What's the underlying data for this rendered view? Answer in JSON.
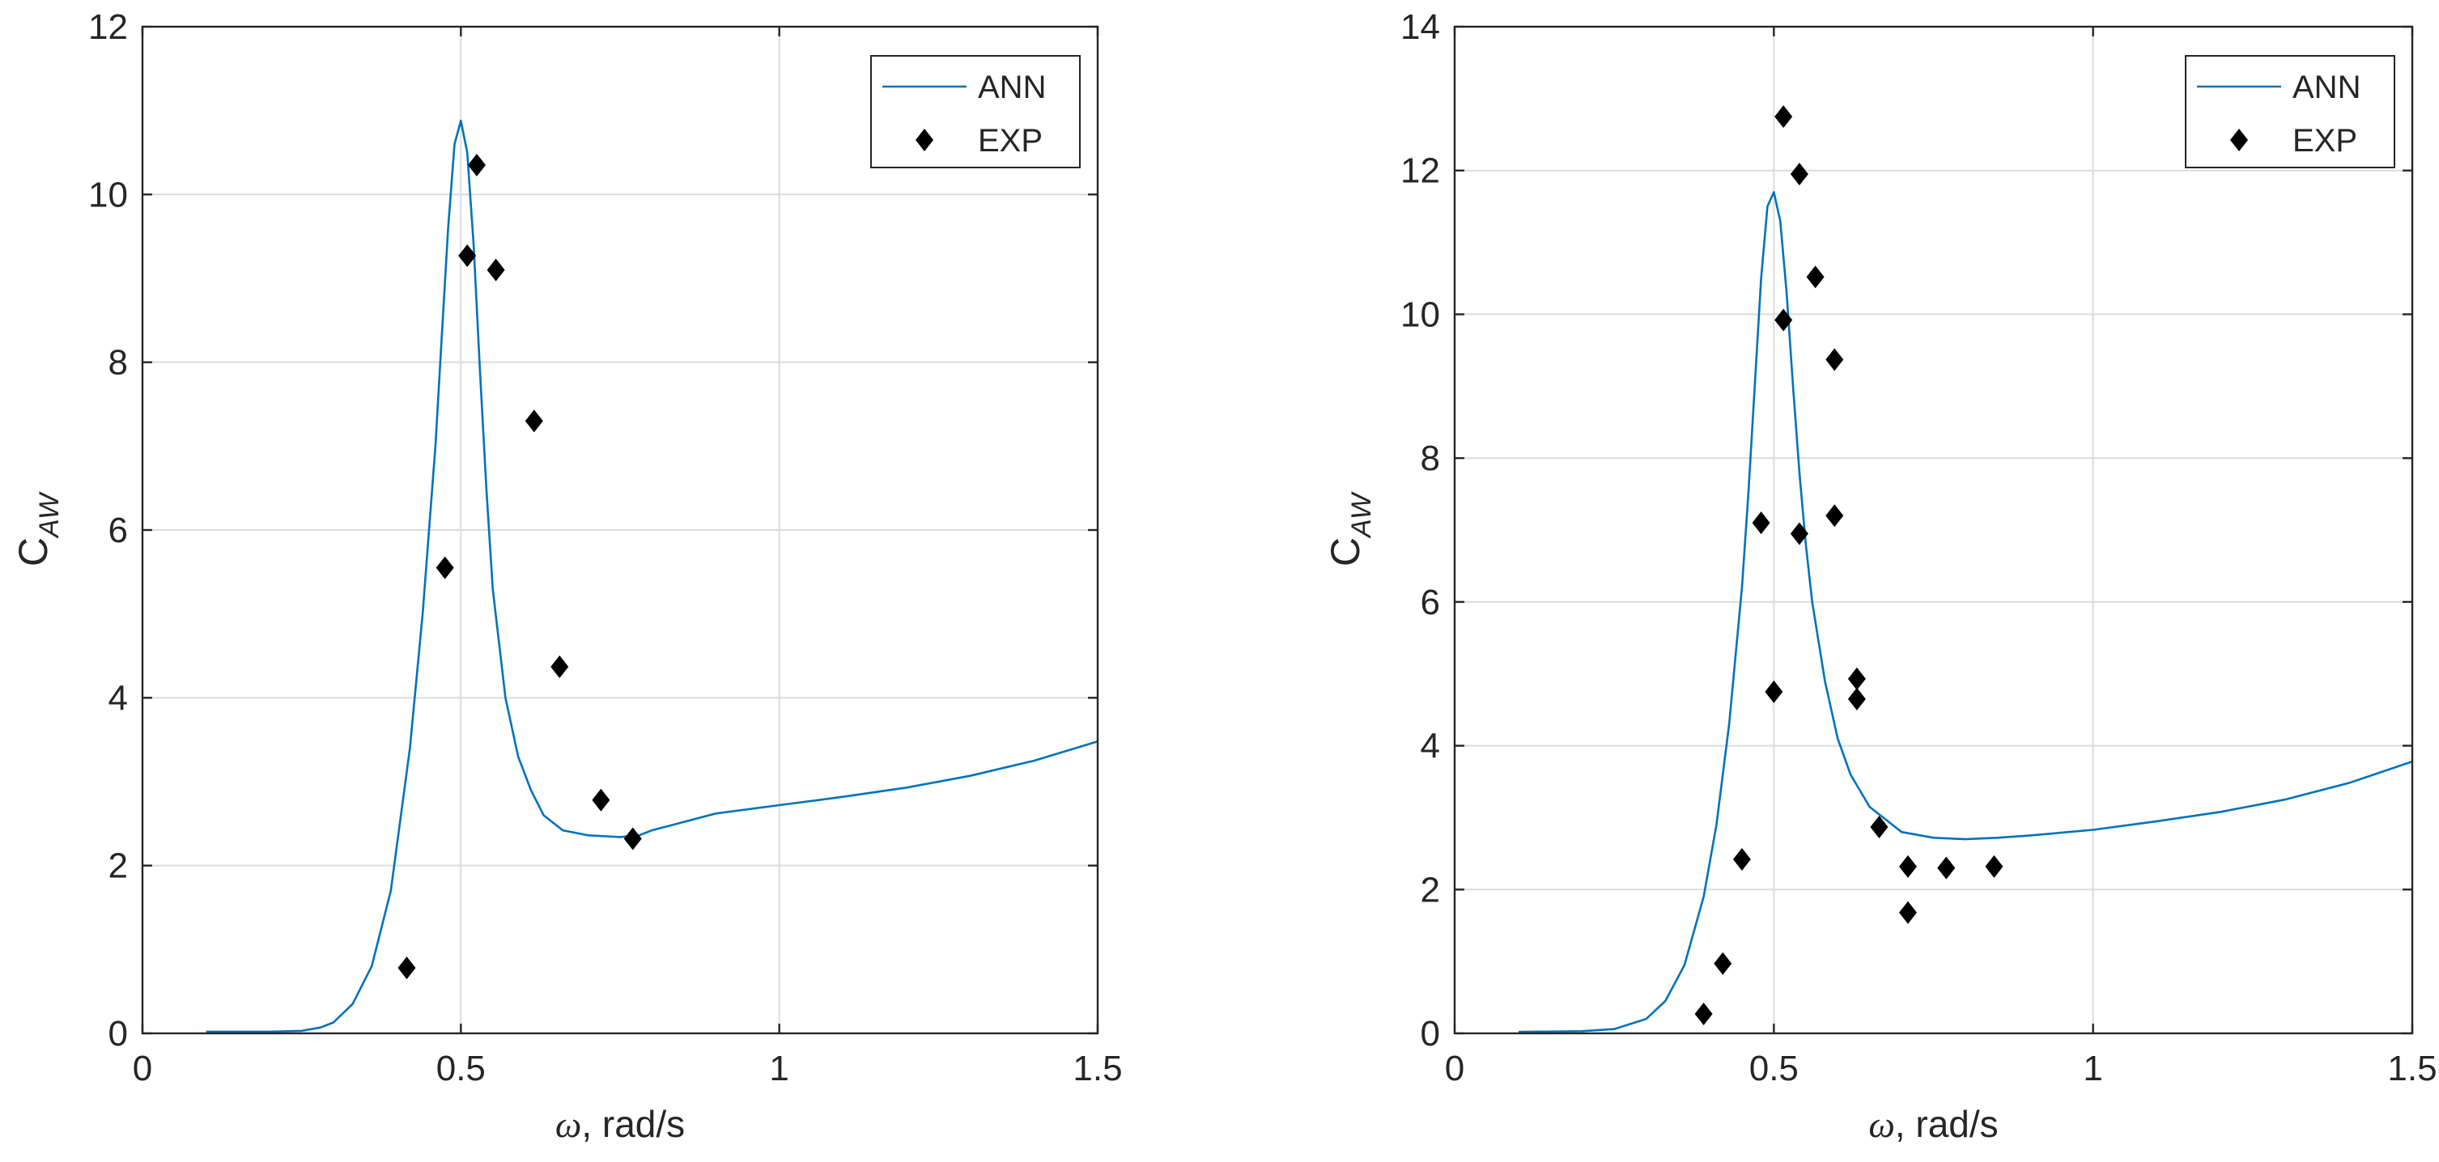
{
  "chart_data": [
    {
      "type": "line",
      "xlabel_symbol": "ω",
      "xlabel_rest": ", rad/s",
      "ylabel_main": "C",
      "ylabel_sub": "AW",
      "xlim": [
        0,
        1.5
      ],
      "ylim": [
        0,
        12
      ],
      "xticks": [
        0,
        0.5,
        1,
        1.5
      ],
      "xtick_labels": [
        "0",
        "0.5",
        "1",
        "1.5"
      ],
      "yticks": [
        0,
        2,
        4,
        6,
        8,
        10,
        12
      ],
      "ytick_labels": [
        "0",
        "2",
        "4",
        "6",
        "8",
        "10",
        "12"
      ],
      "grid": true,
      "legend_position": "top-right",
      "series": [
        {
          "name": "ANN",
          "kind": "line",
          "color": "#0072BD",
          "x": [
            0.1,
            0.2,
            0.25,
            0.28,
            0.3,
            0.33,
            0.36,
            0.39,
            0.42,
            0.44,
            0.46,
            0.47,
            0.48,
            0.49,
            0.5,
            0.51,
            0.52,
            0.53,
            0.54,
            0.55,
            0.57,
            0.59,
            0.61,
            0.63,
            0.66,
            0.7,
            0.75,
            0.78,
            0.8,
            0.85,
            0.9,
            1.0,
            1.1,
            1.2,
            1.3,
            1.4,
            1.5
          ],
          "y": [
            0.02,
            0.02,
            0.03,
            0.07,
            0.13,
            0.35,
            0.8,
            1.7,
            3.4,
            5.0,
            7.0,
            8.3,
            9.6,
            10.6,
            10.88,
            10.5,
            9.4,
            7.9,
            6.5,
            5.3,
            4.0,
            3.3,
            2.9,
            2.6,
            2.42,
            2.36,
            2.34,
            2.36,
            2.42,
            2.52,
            2.62,
            2.72,
            2.82,
            2.93,
            3.07,
            3.25,
            3.48
          ]
        },
        {
          "name": "EXP",
          "kind": "scatter",
          "marker": "diamond",
          "color": "#000000",
          "x": [
            0.415,
            0.475,
            0.51,
            0.525,
            0.555,
            0.615,
            0.655,
            0.72,
            0.77
          ],
          "y": [
            0.78,
            5.55,
            9.27,
            10.35,
            9.1,
            7.3,
            4.37,
            2.78,
            2.32
          ]
        }
      ]
    },
    {
      "type": "line",
      "xlabel_symbol": "ω",
      "xlabel_rest": ", rad/s",
      "ylabel_main": "C",
      "ylabel_sub": "AW",
      "xlim": [
        0,
        1.5
      ],
      "ylim": [
        0,
        14
      ],
      "xticks": [
        0,
        0.5,
        1,
        1.5
      ],
      "xtick_labels": [
        "0",
        "0.5",
        "1",
        "1.5"
      ],
      "yticks": [
        0,
        2,
        4,
        6,
        8,
        10,
        12,
        14
      ],
      "ytick_labels": [
        "0",
        "2",
        "4",
        "6",
        "8",
        "10",
        "12",
        "14"
      ],
      "grid": true,
      "legend_position": "top-right",
      "series": [
        {
          "name": "ANN",
          "kind": "line",
          "color": "#0072BD",
          "x": [
            0.1,
            0.2,
            0.25,
            0.3,
            0.33,
            0.36,
            0.39,
            0.41,
            0.43,
            0.45,
            0.46,
            0.47,
            0.48,
            0.49,
            0.5,
            0.51,
            0.52,
            0.53,
            0.54,
            0.55,
            0.56,
            0.58,
            0.6,
            0.62,
            0.65,
            0.7,
            0.75,
            0.8,
            0.85,
            0.9,
            1.0,
            1.1,
            1.2,
            1.3,
            1.4,
            1.5
          ],
          "y": [
            0.02,
            0.03,
            0.06,
            0.2,
            0.45,
            0.95,
            1.9,
            2.9,
            4.3,
            6.2,
            7.5,
            9.0,
            10.5,
            11.5,
            11.7,
            11.3,
            10.3,
            9.0,
            7.8,
            6.8,
            6.0,
            4.9,
            4.1,
            3.6,
            3.15,
            2.8,
            2.72,
            2.7,
            2.72,
            2.75,
            2.83,
            2.95,
            3.08,
            3.25,
            3.48,
            3.78
          ]
        },
        {
          "name": "EXP",
          "kind": "scatter",
          "marker": "diamond",
          "color": "#000000",
          "x": [
            0.39,
            0.42,
            0.45,
            0.48,
            0.5,
            0.515,
            0.515,
            0.54,
            0.54,
            0.565,
            0.595,
            0.595,
            0.63,
            0.63,
            0.665,
            0.71,
            0.71,
            0.77,
            0.845
          ],
          "y": [
            0.27,
            0.97,
            2.42,
            7.1,
            4.75,
            12.75,
            9.92,
            6.95,
            11.95,
            10.52,
            7.2,
            9.37,
            4.93,
            4.65,
            2.87,
            2.32,
            1.68,
            2.3,
            2.32
          ]
        }
      ]
    }
  ]
}
